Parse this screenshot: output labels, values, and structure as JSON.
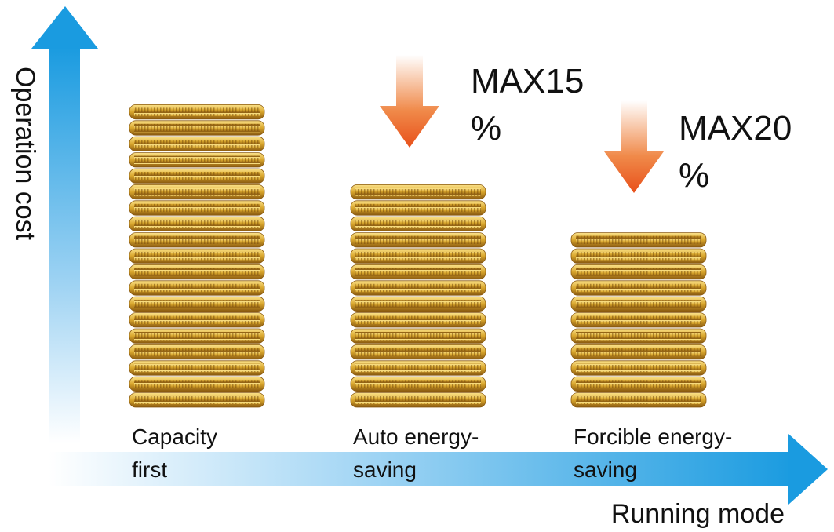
{
  "y_axis_label": "Operation cost",
  "x_axis_label": "Running mode",
  "stacks": [
    {
      "label_lines": [
        "Capacity",
        "first"
      ],
      "coins": 19
    },
    {
      "label_lines": [
        "Auto energy-",
        "saving"
      ],
      "coins": 14,
      "reduction_lines": [
        "MAX15",
        "%"
      ]
    },
    {
      "label_lines": [
        "Forcible energy-",
        "saving"
      ],
      "coins": 11,
      "reduction_lines": [
        "MAX20",
        "%"
      ]
    }
  ]
}
